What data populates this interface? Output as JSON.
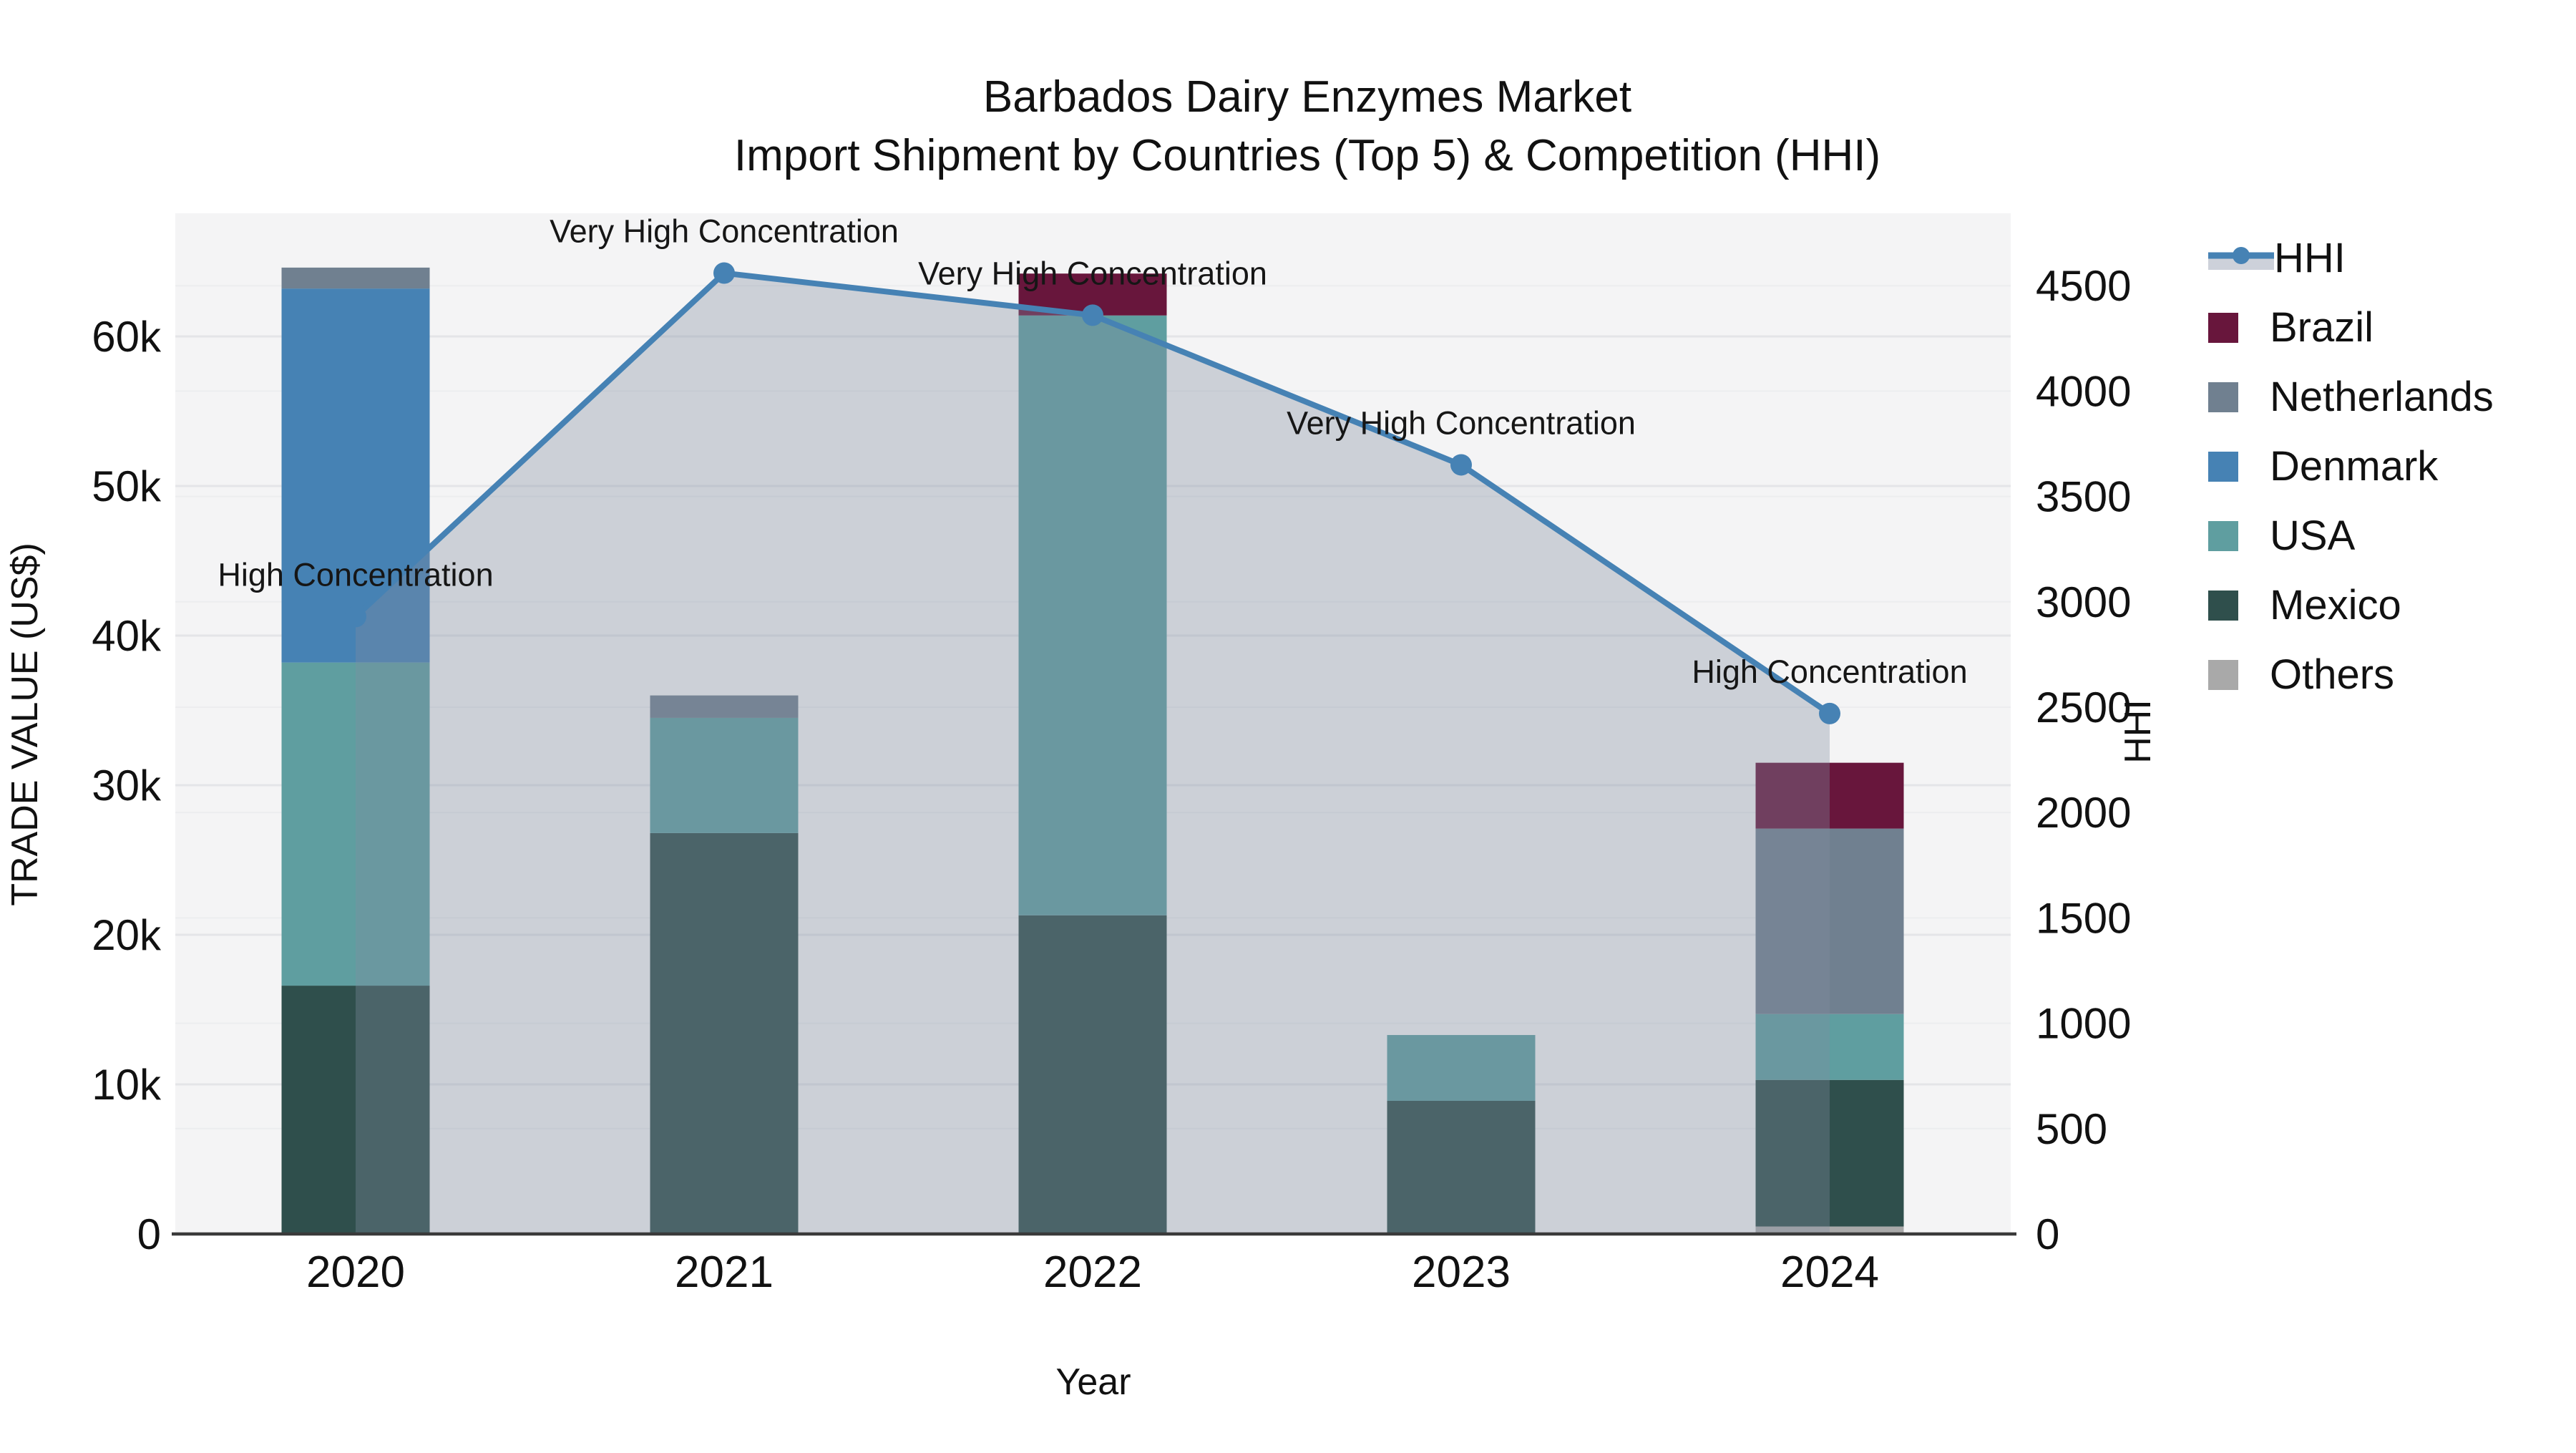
{
  "title": {
    "line1": "Barbados Dairy Enzymes Market",
    "line2": "Import Shipment by Countries (Top 5) & Competition (HHI)"
  },
  "legend": {
    "items": [
      {
        "label": "HHI",
        "type": "line",
        "color": "#4682B4"
      },
      {
        "label": "Brazil",
        "type": "swatch",
        "color": "#68163C"
      },
      {
        "label": "Netherlands",
        "type": "swatch",
        "color": "#708090"
      },
      {
        "label": "Denmark",
        "type": "swatch",
        "color": "#4682B4"
      },
      {
        "label": "USA",
        "type": "swatch",
        "color": "#5F9EA0"
      },
      {
        "label": "Mexico",
        "type": "swatch",
        "color": "#2F4F4C"
      },
      {
        "label": "Others",
        "type": "swatch",
        "color": "#A9A9A9"
      }
    ]
  },
  "chart_data": {
    "type": "combo-stacked-bar-line",
    "categories": [
      "2020",
      "2021",
      "2022",
      "2023",
      "2024"
    ],
    "x_axis": {
      "title": "Year"
    },
    "y_left_axis": {
      "title": "TRADE VALUE (US$)",
      "tick_labels": [
        "0",
        "10k",
        "20k",
        "30k",
        "40k",
        "50k",
        "60k"
      ],
      "tick_values": [
        0,
        10000,
        20000,
        30000,
        40000,
        50000,
        60000
      ],
      "range": [
        0,
        68000
      ]
    },
    "y_right_axis": {
      "title": "HHI",
      "tick_labels": [
        "0",
        "500",
        "1000",
        "1500",
        "2000",
        "2500",
        "3000",
        "3500",
        "4000",
        "4500"
      ],
      "tick_values": [
        0,
        500,
        1000,
        1500,
        2000,
        2500,
        3000,
        3500,
        4000,
        4500
      ],
      "range": [
        0,
        4840
      ]
    },
    "bar_series_bottom_to_top": [
      {
        "name": "Others",
        "color": "#A9A9A9",
        "values": [
          0,
          0,
          0,
          0,
          500
        ]
      },
      {
        "name": "Mexico",
        "color": "#2F4F4C",
        "values": [
          16600,
          26800,
          21300,
          8900,
          9800
        ]
      },
      {
        "name": "USA",
        "color": "#5F9EA0",
        "values": [
          21600,
          7700,
          40100,
          4400,
          4400
        ]
      },
      {
        "name": "Denmark",
        "color": "#4682B4",
        "values": [
          25000,
          0,
          0,
          0,
          0
        ]
      },
      {
        "name": "Netherlands",
        "color": "#708090",
        "values": [
          1400,
          1500,
          0,
          0,
          12400
        ]
      },
      {
        "name": "Brazil",
        "color": "#68163C",
        "values": [
          0,
          0,
          2800,
          0,
          4400
        ]
      }
    ],
    "line_series": {
      "name": "HHI",
      "axis": "right",
      "color": "#4682B4",
      "area_fill": "rgba(130,140,160,0.35)",
      "values": [
        2930,
        4560,
        4360,
        3650,
        2470
      ]
    },
    "annotations": [
      {
        "category": "2020",
        "text": "High Concentration"
      },
      {
        "category": "2021",
        "text": "Very High Concentration"
      },
      {
        "category": "2022",
        "text": "Very High Concentration"
      },
      {
        "category": "2023",
        "text": "Very High Concentration"
      },
      {
        "category": "2024",
        "text": "High Concentration"
      }
    ],
    "style": {
      "plot_bg": "#F4F4F5",
      "grid_major": "#E4E5E8",
      "grid_minor": "#ECEDEF",
      "axis_line": "#3A3A3A",
      "text_color": "#111111"
    },
    "layout_hints": {
      "grid": true,
      "legend_position": "right-outside"
    }
  }
}
